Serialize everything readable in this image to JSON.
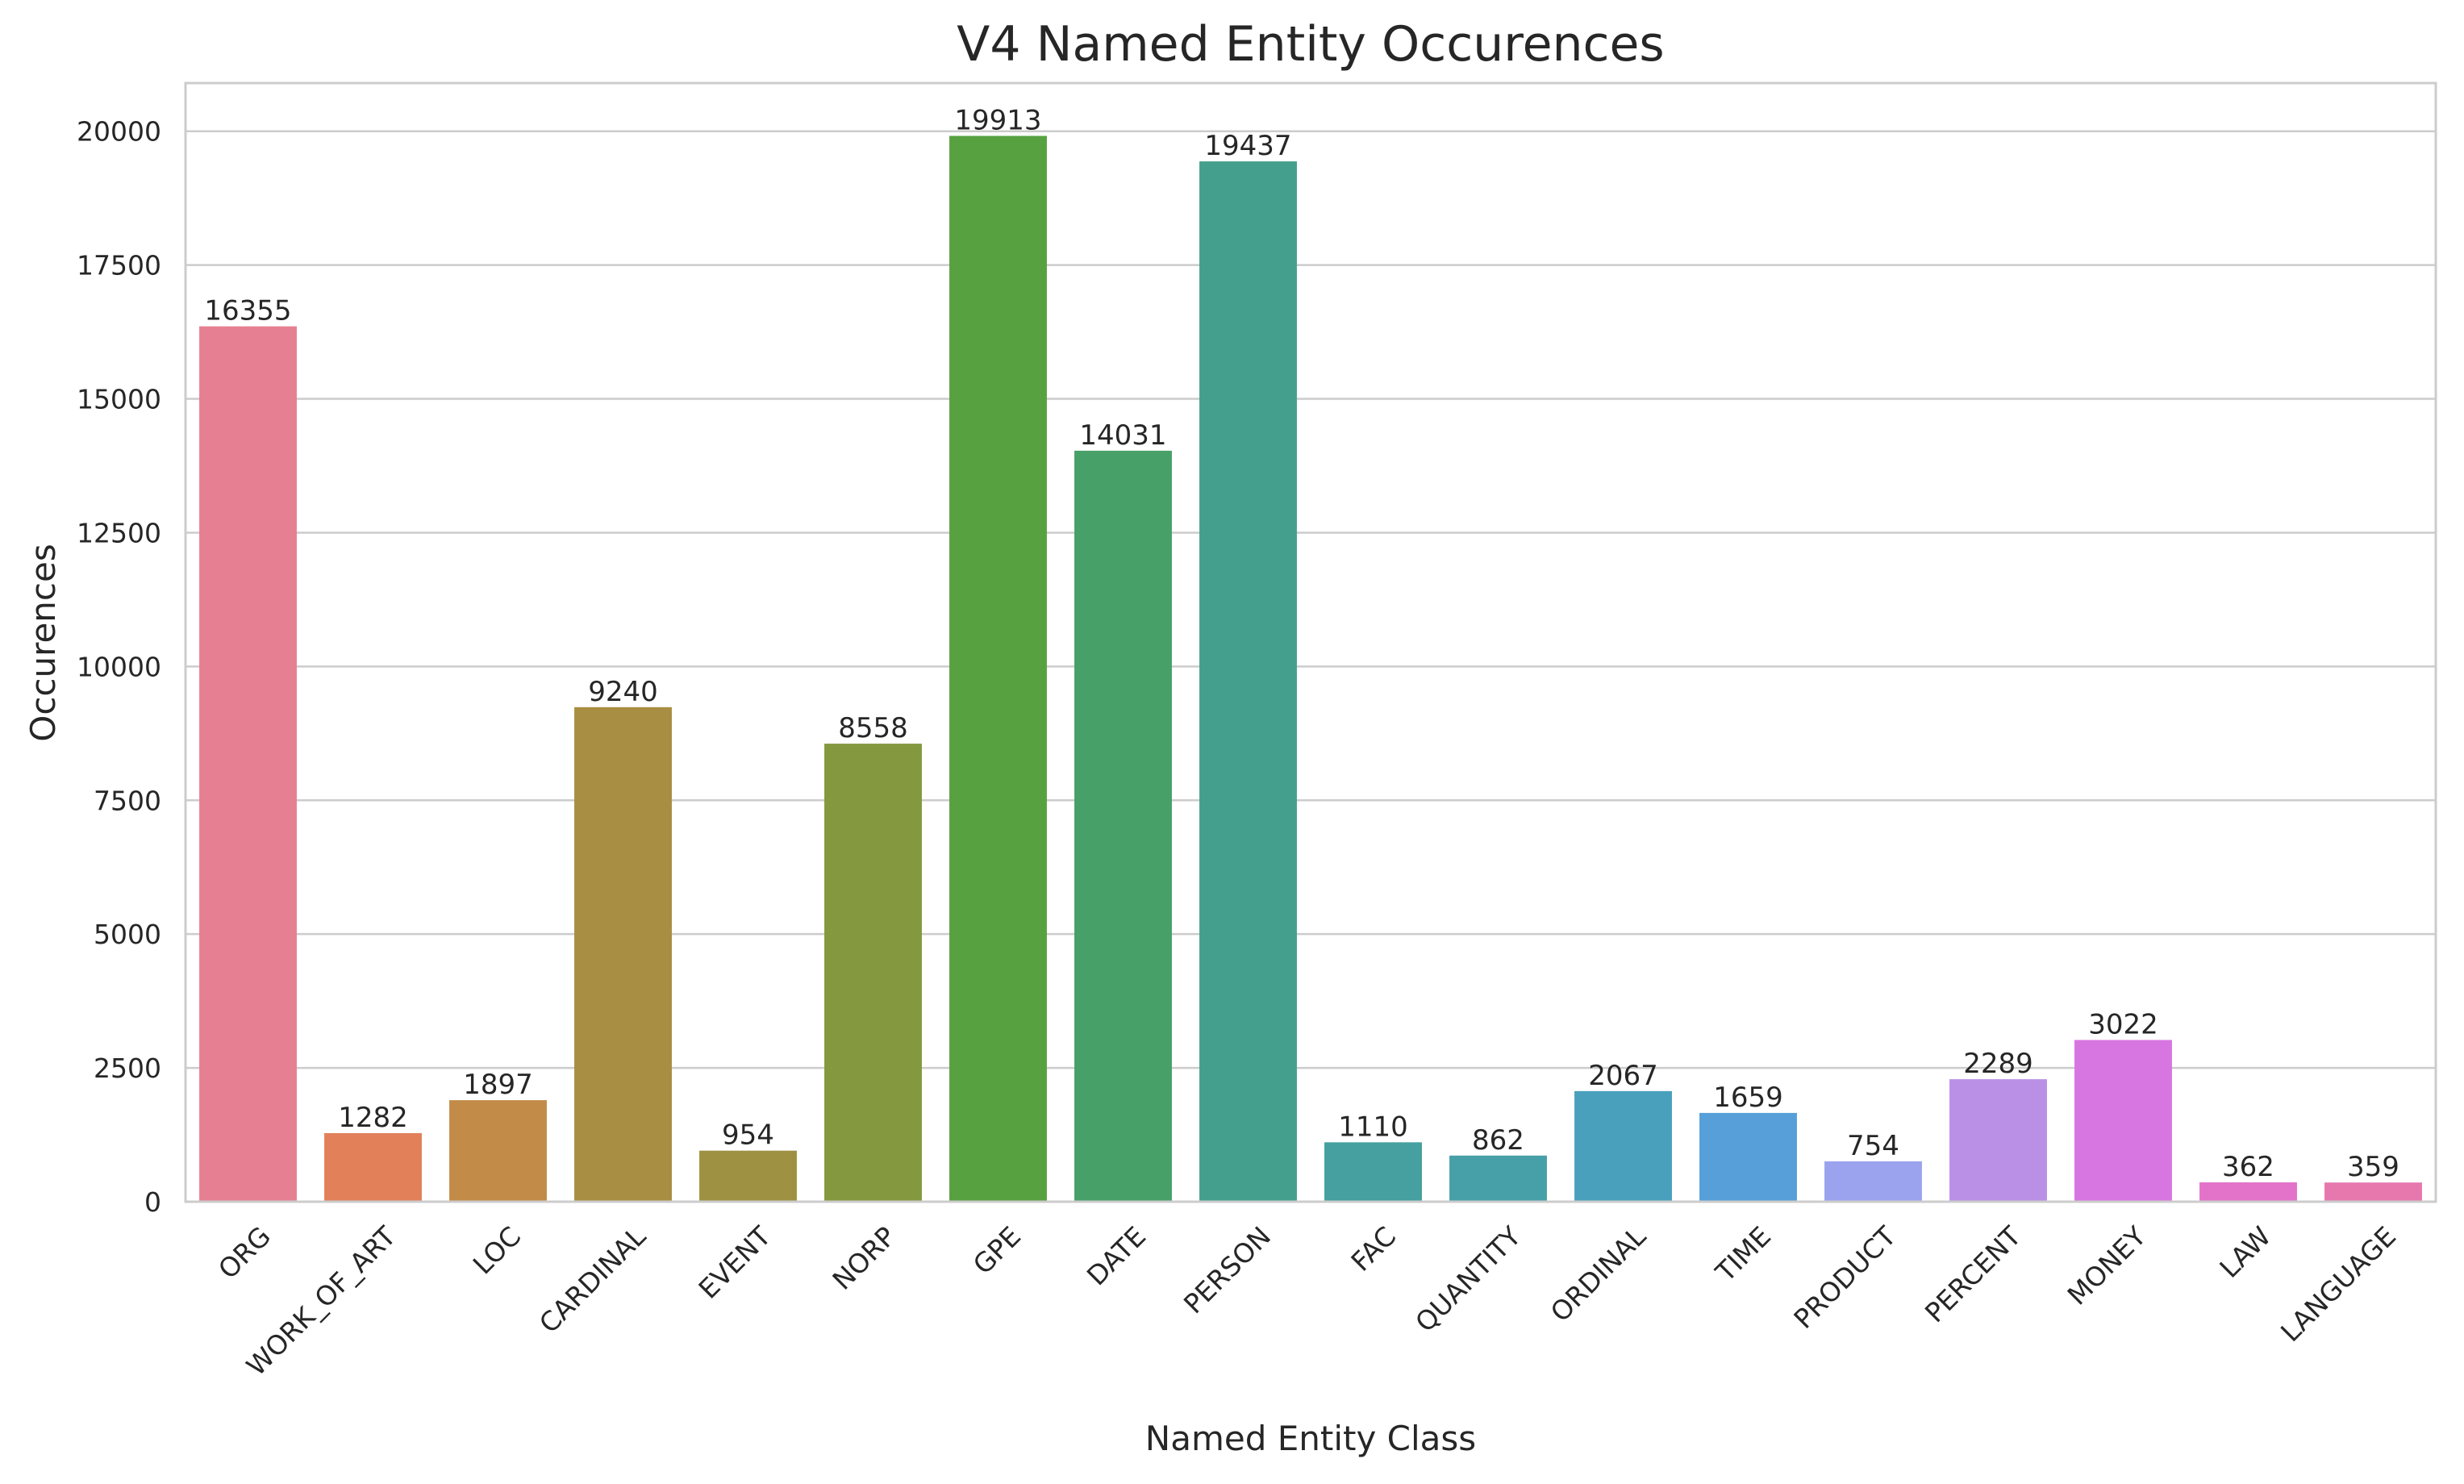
{
  "chart_data": {
    "type": "bar",
    "title": "V4 Named Entity Occurences",
    "xlabel": "Named Entity Class",
    "ylabel": "Occurences",
    "categories": [
      "ORG",
      "WORK_OF_ART",
      "LOC",
      "CARDINAL",
      "EVENT",
      "NORP",
      "GPE",
      "DATE",
      "PERSON",
      "FAC",
      "QUANTITY",
      "ORDINAL",
      "TIME",
      "PRODUCT",
      "PERCENT",
      "MONEY",
      "LAW",
      "LANGUAGE"
    ],
    "values": [
      16355,
      1282,
      1897,
      9240,
      954,
      8558,
      19913,
      14031,
      19437,
      1110,
      862,
      2067,
      1659,
      754,
      2289,
      3022,
      362,
      359
    ],
    "data_labels": [
      "16355",
      "1282",
      "1897",
      "9240",
      "954",
      "8558",
      "19913",
      "14031",
      "19437",
      "1110",
      "862",
      "2067",
      "1659",
      "754",
      "2289",
      "3022",
      "362",
      "359"
    ],
    "colors": [
      "#e77f92",
      "#e2805a",
      "#c38b48",
      "#a88e42",
      "#9e9142",
      "#84983f",
      "#57a141",
      "#47a068",
      "#44a08c",
      "#45a09f",
      "#47a0a8",
      "#49a0bd",
      "#569fd9",
      "#9ba3ef",
      "#b990e6",
      "#d876e1",
      "#e372c9",
      "#e678ae"
    ],
    "yticks": [
      0,
      2500,
      5000,
      7500,
      10000,
      12500,
      15000,
      17500,
      20000
    ],
    "ytick_labels": [
      "0",
      "2500",
      "5000",
      "7500",
      "10000",
      "12500",
      "15000",
      "17500",
      "20000"
    ],
    "ylim": [
      0,
      20900
    ],
    "grid": "horizontal",
    "legend": "none"
  }
}
